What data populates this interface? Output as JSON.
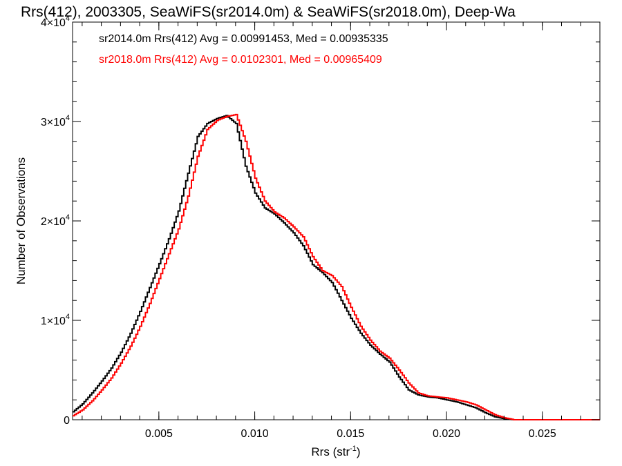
{
  "chart_data": {
    "type": "line",
    "title": "Rrs(412), 2003305, SeaWiFS(sr2014.0m) & SeaWiFS(sr2018.0m), Deep-Wa",
    "xlabel": "Rrs (str",
    "xlabel_sup": "-1",
    "xlabel_close": ")",
    "ylabel": "Number of Observations",
    "xlim": [
      0.0005,
      0.028
    ],
    "ylim": [
      0,
      40000
    ],
    "x_ticks": [
      {
        "value": 0.005,
        "label": "0.005"
      },
      {
        "value": 0.01,
        "label": "0.010"
      },
      {
        "value": 0.015,
        "label": "0.015"
      },
      {
        "value": 0.02,
        "label": "0.020"
      },
      {
        "value": 0.025,
        "label": "0.025"
      }
    ],
    "y_ticks": [
      {
        "value": 0,
        "mant": "0",
        "exp": ""
      },
      {
        "value": 10000,
        "mant": "1×10",
        "exp": "4"
      },
      {
        "value": 20000,
        "mant": "2×10",
        "exp": "4"
      },
      {
        "value": 30000,
        "mant": "3×10",
        "exp": "4"
      },
      {
        "value": 40000,
        "mant": "4×10",
        "exp": "4"
      }
    ],
    "legend": [
      {
        "text": "sr2014.0m Rrs(412) Avg = 0.00991453, Med = 0.00935335",
        "color": "#000000"
      },
      {
        "text": "sr2018.0m Rrs(412) Avg = 0.0102301, Med = 0.00965409",
        "color": "#ff0000"
      }
    ],
    "series": [
      {
        "color": "#000000",
        "x": [
          0.0005,
          0.001,
          0.0015,
          0.002,
          0.0025,
          0.003,
          0.0035,
          0.004,
          0.0045,
          0.005,
          0.0055,
          0.006,
          0.0065,
          0.007,
          0.0075,
          0.008,
          0.0085,
          0.009,
          0.0095,
          0.01,
          0.0105,
          0.011,
          0.0115,
          0.012,
          0.0125,
          0.013,
          0.0135,
          0.014,
          0.0145,
          0.015,
          0.0155,
          0.016,
          0.0165,
          0.017,
          0.0175,
          0.018,
          0.0185,
          0.019,
          0.0195,
          0.02,
          0.0205,
          0.021,
          0.0215,
          0.022,
          0.0225,
          0.023,
          0.0235,
          0.024,
          0.025,
          0.026,
          0.027,
          0.028
        ],
        "y": [
          800,
          1600,
          2700,
          3900,
          5200,
          6800,
          8700,
          10900,
          13300,
          15700,
          18200,
          21000,
          24800,
          28500,
          29800,
          30300,
          30600,
          29800,
          25500,
          22800,
          21300,
          20700,
          19800,
          18800,
          17500,
          15600,
          14800,
          13800,
          12000,
          10200,
          8700,
          7500,
          6600,
          5800,
          4300,
          3000,
          2500,
          2300,
          2200,
          2000,
          1800,
          1500,
          1200,
          700,
          300,
          100,
          0,
          0,
          0,
          0,
          0,
          0
        ]
      },
      {
        "color": "#ff0000",
        "x": [
          0.0005,
          0.001,
          0.0015,
          0.002,
          0.0025,
          0.003,
          0.0035,
          0.004,
          0.0045,
          0.005,
          0.0055,
          0.006,
          0.0065,
          0.007,
          0.0075,
          0.008,
          0.0085,
          0.009,
          0.0095,
          0.01,
          0.0105,
          0.011,
          0.0115,
          0.012,
          0.0125,
          0.013,
          0.0135,
          0.014,
          0.0145,
          0.015,
          0.0155,
          0.016,
          0.0165,
          0.017,
          0.0175,
          0.018,
          0.0185,
          0.019,
          0.0195,
          0.02,
          0.0205,
          0.021,
          0.0215,
          0.022,
          0.0225,
          0.023,
          0.0235,
          0.024,
          0.025,
          0.026,
          0.027,
          0.028
        ],
        "y": [
          400,
          1000,
          1900,
          3000,
          4200,
          5700,
          7400,
          9400,
          11700,
          14200,
          16700,
          19200,
          22500,
          26500,
          29200,
          30100,
          30500,
          30700,
          28000,
          24300,
          22000,
          20900,
          20300,
          19400,
          18400,
          16400,
          15000,
          14500,
          13400,
          11300,
          9400,
          8000,
          6900,
          6200,
          5000,
          3700,
          2700,
          2400,
          2300,
          2200,
          2000,
          1800,
          1500,
          1000,
          500,
          200,
          0,
          0,
          0,
          0,
          0,
          0
        ]
      }
    ]
  }
}
